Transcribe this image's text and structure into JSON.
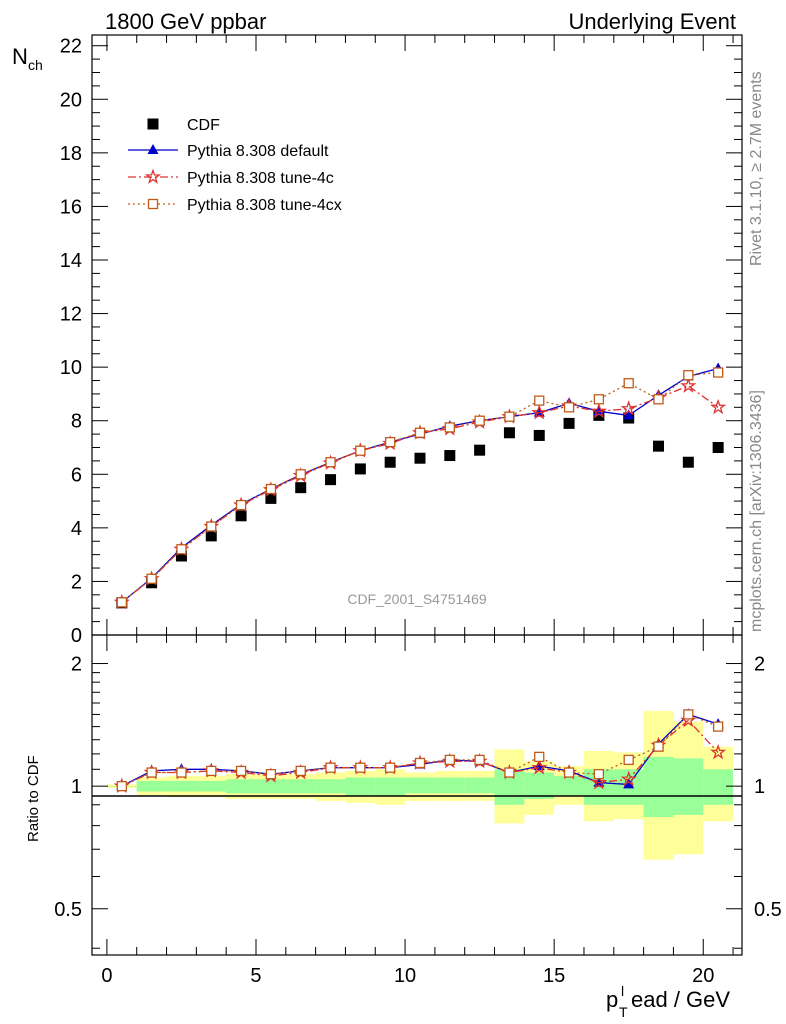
{
  "header": {
    "left": "1800 GeV ppbar",
    "right": "Underlying Event"
  },
  "side_labels": {
    "rivet": "Rivet 3.1.10, ≥ 2.7M events",
    "mcplots": "mcplots.cern.ch [arXiv:1306.3436]"
  },
  "analysis_id": "CDF_2001_S4751469",
  "colors": {
    "cdf": "#000000",
    "default": "#0000cc",
    "tune4c": "#e03030",
    "tune4cx": "#c05a1a",
    "band_outer": "#ffff99",
    "band_inner": "#99ff99"
  },
  "chart_data": [
    {
      "type": "scatter",
      "panel": "main",
      "ylabel": "N",
      "ylabel_sub": "ch",
      "xlim": [
        -0.5,
        21.3
      ],
      "ylim": [
        0,
        22.4
      ],
      "yticks": [
        0,
        2,
        4,
        6,
        8,
        10,
        12,
        14,
        16,
        18,
        20,
        22
      ],
      "x": [
        0.5,
        1.5,
        2.5,
        3.5,
        4.5,
        5.5,
        6.5,
        7.5,
        8.5,
        9.5,
        10.5,
        11.5,
        12.5,
        13.5,
        14.5,
        15.5,
        16.5,
        17.5,
        18.5,
        19.5,
        20.5
      ],
      "legend": [
        "CDF",
        "Pythia 8.308 default",
        "Pythia 8.308 tune-4c",
        "Pythia 8.308 tune-4cx"
      ],
      "series": [
        {
          "name": "CDF",
          "marker": "square",
          "values": [
            1.2,
            1.95,
            2.95,
            3.7,
            4.45,
            5.1,
            5.5,
            5.8,
            6.2,
            6.45,
            6.6,
            6.7,
            6.9,
            7.55,
            7.45,
            7.9,
            8.2,
            8.1,
            7.05,
            6.45,
            7.0
          ]
        },
        {
          "name": "Pythia 8.308 default",
          "marker": "triangle",
          "values": [
            1.22,
            2.12,
            3.25,
            4.1,
            4.88,
            5.45,
            5.98,
            6.45,
            6.88,
            7.2,
            7.5,
            7.8,
            8.0,
            8.15,
            8.3,
            8.65,
            8.35,
            8.2,
            8.95,
            9.65,
            9.95
          ]
        },
        {
          "name": "Pythia 8.308 tune-4c",
          "marker": "star",
          "values": [
            1.22,
            2.1,
            3.2,
            4.05,
            4.85,
            5.42,
            5.95,
            6.42,
            6.88,
            7.15,
            7.55,
            7.7,
            7.95,
            8.15,
            8.3,
            8.55,
            8.35,
            8.45,
            8.85,
            9.3,
            8.5
          ]
        },
        {
          "name": "Pythia 8.308 tune-4cx",
          "marker": "open-square",
          "values": [
            1.22,
            2.1,
            3.2,
            4.05,
            4.85,
            5.45,
            6.0,
            6.45,
            6.88,
            7.2,
            7.55,
            7.75,
            8.0,
            8.15,
            8.75,
            8.5,
            8.8,
            9.4,
            8.8,
            9.7,
            9.8
          ]
        }
      ]
    },
    {
      "type": "line",
      "panel": "ratio",
      "ylabel": "Ratio to CDF",
      "xlabel": "p",
      "xlabel_sub": "T",
      "xlabel_sup": "l",
      "xlabel_rest": "ead / GeV",
      "xlim": [
        -0.5,
        21.3
      ],
      "ylim": [
        0.385,
        2.35
      ],
      "log_y": true,
      "yticks": [
        0.5,
        1,
        2
      ],
      "ytick_labels": [
        "0.5",
        "1",
        "2"
      ],
      "xticks": [
        0,
        5,
        10,
        15,
        20
      ],
      "x": [
        0.5,
        1.5,
        2.5,
        3.5,
        4.5,
        5.5,
        6.5,
        7.5,
        8.5,
        9.5,
        10.5,
        11.5,
        12.5,
        13.5,
        14.5,
        15.5,
        16.5,
        17.5,
        18.5,
        19.5,
        20.5
      ],
      "band_outer": [
        [
          0.99,
          1.01
        ],
        [
          0.95,
          1.05
        ],
        [
          0.94,
          1.06
        ],
        [
          0.94,
          1.06
        ],
        [
          0.93,
          1.07
        ],
        [
          0.93,
          1.07
        ],
        [
          0.93,
          1.07
        ],
        [
          0.92,
          1.08
        ],
        [
          0.91,
          1.09
        ],
        [
          0.9,
          1.1
        ],
        [
          0.92,
          1.08
        ],
        [
          0.92,
          1.09
        ],
        [
          0.92,
          1.09
        ],
        [
          0.81,
          1.23
        ],
        [
          0.85,
          1.15
        ],
        [
          0.9,
          1.12
        ],
        [
          0.82,
          1.22
        ],
        [
          0.83,
          1.21
        ],
        [
          0.66,
          1.53
        ],
        [
          0.68,
          1.44
        ],
        [
          0.82,
          1.25
        ]
      ],
      "band_inner": [
        [
          1.0,
          1.0
        ],
        [
          0.97,
          1.03
        ],
        [
          0.97,
          1.03
        ],
        [
          0.97,
          1.03
        ],
        [
          0.96,
          1.04
        ],
        [
          0.96,
          1.04
        ],
        [
          0.96,
          1.04
        ],
        [
          0.96,
          1.04
        ],
        [
          0.95,
          1.05
        ],
        [
          0.95,
          1.05
        ],
        [
          0.96,
          1.05
        ],
        [
          0.96,
          1.05
        ],
        [
          0.96,
          1.05
        ],
        [
          0.9,
          1.1
        ],
        [
          0.93,
          1.08
        ],
        [
          0.95,
          1.06
        ],
        [
          0.9,
          1.1
        ],
        [
          0.9,
          1.1
        ],
        [
          0.84,
          1.18
        ],
        [
          0.85,
          1.17
        ],
        [
          0.9,
          1.1
        ]
      ],
      "series": [
        {
          "name": "Pythia 8.308 default",
          "values": [
            1.0,
            1.09,
            1.1,
            1.1,
            1.09,
            1.07,
            1.09,
            1.11,
            1.11,
            1.11,
            1.13,
            1.16,
            1.15,
            1.08,
            1.12,
            1.09,
            1.02,
            1.01,
            1.27,
            1.5,
            1.42
          ]
        },
        {
          "name": "Pythia 8.308 tune-4c",
          "values": [
            1.0,
            1.08,
            1.08,
            1.09,
            1.08,
            1.06,
            1.08,
            1.11,
            1.11,
            1.11,
            1.14,
            1.15,
            1.15,
            1.08,
            1.11,
            1.08,
            1.02,
            1.04,
            1.26,
            1.45,
            1.21
          ]
        },
        {
          "name": "Pythia 8.308 tune-4cx",
          "values": [
            1.0,
            1.08,
            1.08,
            1.09,
            1.09,
            1.07,
            1.09,
            1.11,
            1.11,
            1.11,
            1.14,
            1.16,
            1.16,
            1.08,
            1.18,
            1.08,
            1.07,
            1.16,
            1.25,
            1.5,
            1.4
          ]
        }
      ]
    }
  ]
}
